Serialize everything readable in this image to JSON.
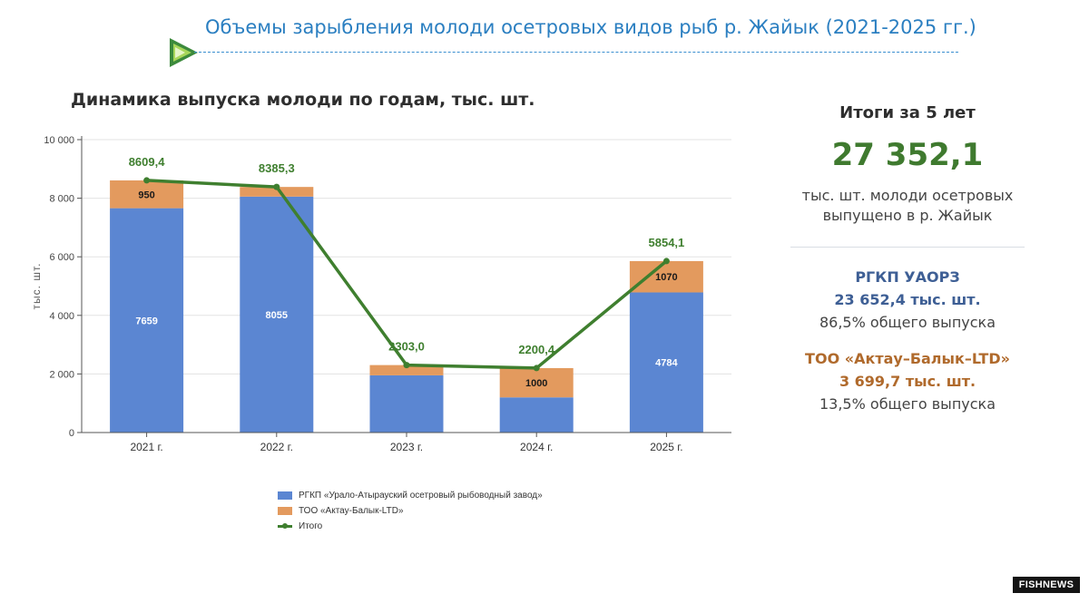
{
  "slide_title": "Объемы зарыбления молоди осетровых видов рыб р. Жайык (2021-2025 гг.)",
  "chart_heading": "Динамика выпуска молоди по годам, тыс. шт.",
  "colors": {
    "series_1": "#5b86d2",
    "series_2": "#e39a5e",
    "total_line": "#3f7f2f",
    "title": "#2b7fc1"
  },
  "chart_data": {
    "type": "bar",
    "stacked": true,
    "categories": [
      "2021 г.",
      "2022 г.",
      "2023 г.",
      "2024 г.",
      "2025 г."
    ],
    "series": [
      {
        "name": "РГКП «Урало-Атырауский осетровый рыбоводный завод»",
        "values": [
          7659,
          8055,
          1953,
          1200,
          4784
        ],
        "data_labels": [
          "7659",
          "8055",
          "",
          "",
          "4784"
        ]
      },
      {
        "name": "ТОО «Актау-Балык-LTD»",
        "values": [
          950,
          330,
          350,
          1000,
          1070
        ],
        "data_labels": [
          "950",
          "",
          "",
          "1000",
          "1070"
        ]
      }
    ],
    "line": {
      "name": "Итого",
      "values": [
        8609.4,
        8385.3,
        2303.0,
        2200.4,
        5854.1
      ],
      "labels": [
        "8609,4",
        "8385,3",
        "2303,0",
        "2200,4",
        "5854,1"
      ]
    },
    "ylabel": "тыс. шт.",
    "ylim": [
      0,
      10000
    ],
    "yticks": [
      0,
      2000,
      4000,
      6000,
      8000,
      10000
    ],
    "ytick_labels": [
      "0",
      "2 000",
      "4 000",
      "6 000",
      "8 000",
      "10 000"
    ],
    "grid": true,
    "legend_position": "bottom"
  },
  "summary": {
    "heading": "Итоги за 5 лет",
    "total": "27 352,1",
    "description": "тыс. шт. молоди осетровых выпущено в р. Жайык",
    "org1": {
      "name": "РГКП УАОРЗ",
      "amount": "23 652,4 тыс. шт.",
      "share": "86,5% общего выпуска"
    },
    "org2": {
      "name": "ТОО «Актау–Балык–LTD»",
      "amount": "3 699,7 тыс. шт.",
      "share": "13,5% общего выпуска"
    }
  },
  "badge": "FISHNEWS"
}
